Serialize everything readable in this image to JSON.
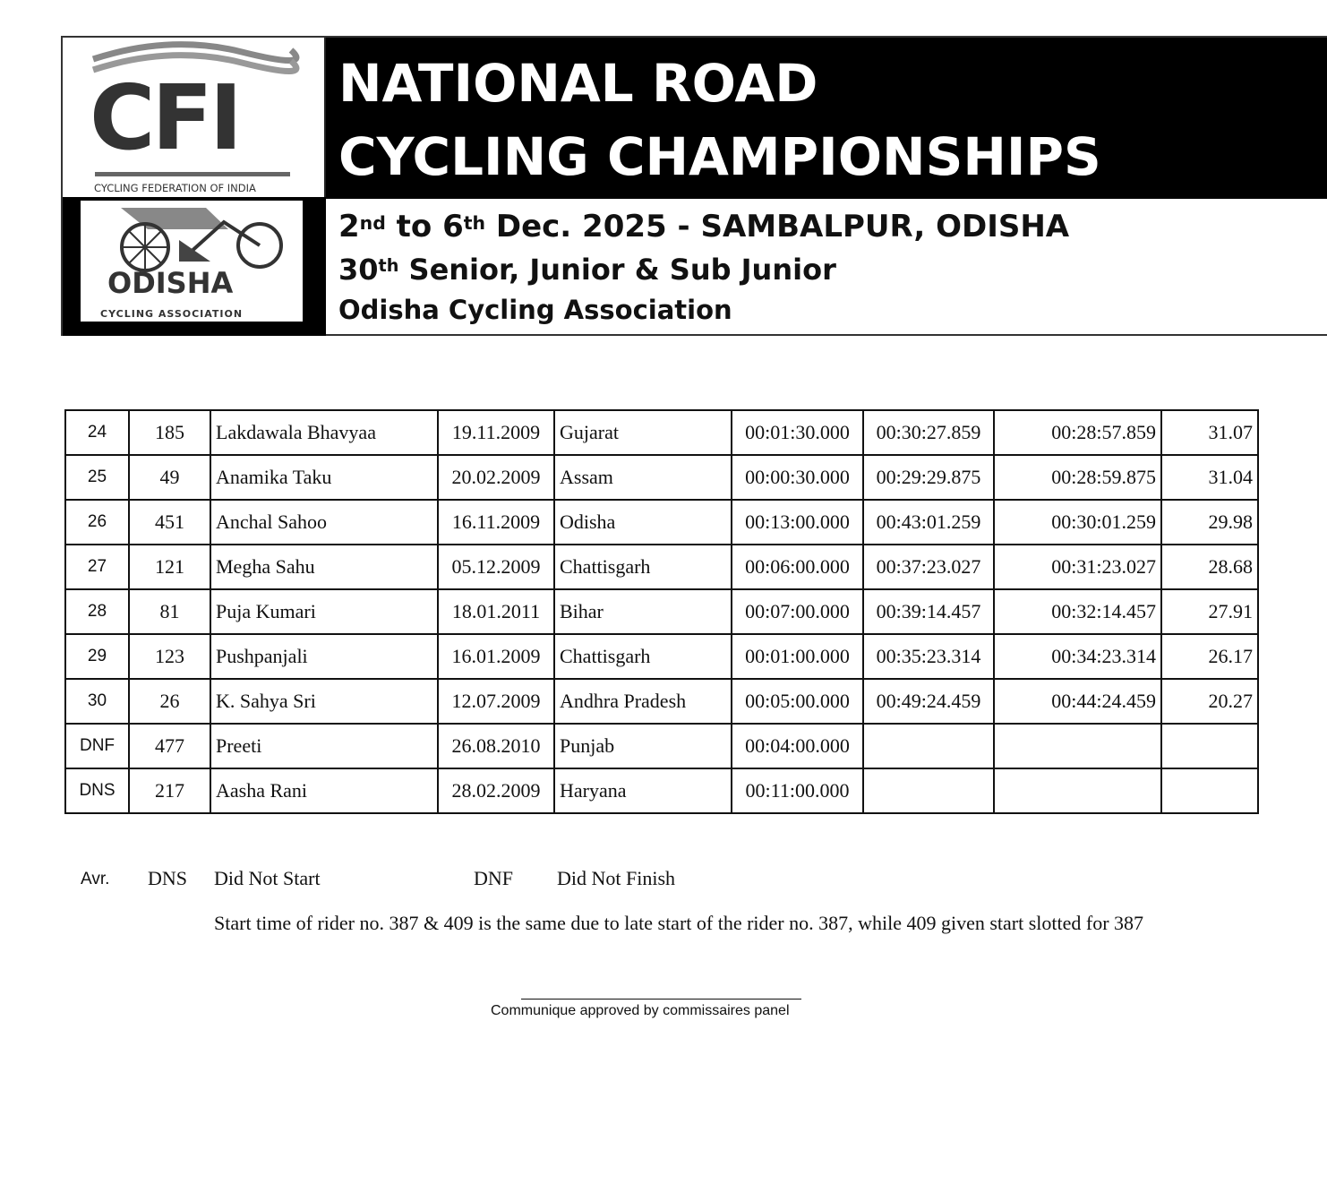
{
  "header": {
    "cfi_logo": {
      "text": "CFI",
      "caption": "CYCLING FEDERATION OF INDIA"
    },
    "oca_logo": {
      "text": "ODISHA",
      "caption": "CYCLING ASSOCIATION"
    },
    "title_line1": "NATIONAL ROAD",
    "title_line2": "CYCLING CHAMPIONSHIPS",
    "date_a": "2",
    "date_a_sup": "nd",
    "date_b": " to 6",
    "date_b_sup": "th",
    "date_c": " Dec. 2025 - SAMBALPUR, ODISHA",
    "edition": "30",
    "edition_sup": "th",
    "edition_rest": " Senior, Junior & Sub Junior",
    "organizer": "Odisha Cycling Association"
  },
  "table": {
    "rows": [
      [
        "24",
        "185",
        "Lakdawala Bhavyaa",
        "19.11.2009",
        "Gujarat",
        "00:01:30.000",
        "00:30:27.859",
        "00:28:57.859",
        "31.07"
      ],
      [
        "25",
        "49",
        "Anamika Taku",
        "20.02.2009",
        "Assam",
        "00:00:30.000",
        "00:29:29.875",
        "00:28:59.875",
        "31.04"
      ],
      [
        "26",
        "451",
        "Anchal Sahoo",
        "16.11.2009",
        "Odisha",
        "00:13:00.000",
        "00:43:01.259",
        "00:30:01.259",
        "29.98"
      ],
      [
        "27",
        "121",
        "Megha Sahu",
        "05.12.2009",
        "Chattisgarh",
        "00:06:00.000",
        "00:37:23.027",
        "00:31:23.027",
        "28.68"
      ],
      [
        "28",
        "81",
        "Puja Kumari",
        "18.01.2011",
        "Bihar",
        "00:07:00.000",
        "00:39:14.457",
        "00:32:14.457",
        "27.91"
      ],
      [
        "29",
        "123",
        "Pushpanjali",
        "16.01.2009",
        "Chattisgarh",
        "00:01:00.000",
        "00:35:23.314",
        "00:34:23.314",
        "26.17"
      ],
      [
        "30",
        "26",
        "K. Sahya Sri",
        "12.07.2009",
        "Andhra Pradesh",
        "00:05:00.000",
        "00:49:24.459",
        "00:44:24.459",
        "20.27"
      ],
      [
        "DNF",
        "477",
        "Preeti",
        "26.08.2010",
        "Punjab",
        "00:04:00.000",
        "",
        "",
        ""
      ],
      [
        "DNS",
        "217",
        "Aasha Rani",
        "28.02.2009",
        "Haryana",
        "00:11:00.000",
        "",
        "",
        ""
      ]
    ]
  },
  "legend": {
    "abbr_label": "Avr.",
    "dns_code": "DNS",
    "dns_text": "Did Not Start",
    "dnf_code": "DNF",
    "dnf_text": "Did Not Finish"
  },
  "note": "Start time of rider no. 387 & 409 is the same due to late start of the rider no. 387, while 409 given start slotted for 387",
  "signature": "Communique approved by commissaires panel"
}
